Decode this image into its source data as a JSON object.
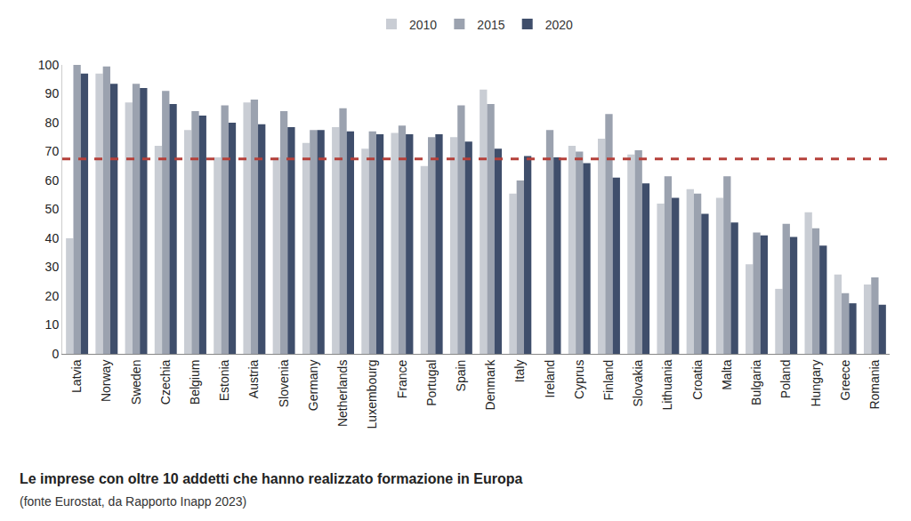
{
  "chart_data": {
    "type": "bar",
    "title": "Le imprese con oltre 10 addetti che hanno realizzato formazione in Europa",
    "subtitle": "(fonte Eurostat, da Rapporto Inapp 2023)",
    "categories": [
      "Latvia",
      "Norway",
      "Sweden",
      "Czechia",
      "Belgium",
      "Estonia",
      "Austria",
      "Slovenia",
      "Germany",
      "Netherlands",
      "Luxembourg",
      "France",
      "Portugal",
      "Spain",
      "Denmark",
      "Italy",
      "Ireland",
      "Cyprus",
      "Finland",
      "Slovakia",
      "Lithuania",
      "Croatia",
      "Malta",
      "Bulgaria",
      "Poland",
      "Hungary",
      "Greece",
      "Romania"
    ],
    "series": [
      {
        "name": "2010",
        "color": "#c9cdd4",
        "values": [
          40,
          97,
          87,
          72,
          77.5,
          68,
          87,
          68,
          73,
          78.5,
          71,
          76.5,
          65,
          75,
          91.5,
          55.5,
          null,
          72,
          74.5,
          69,
          52,
          57,
          54,
          31,
          22.5,
          49,
          27.5,
          24
        ]
      },
      {
        "name": "2015",
        "color": "#9ba2af",
        "values": [
          100,
          99.5,
          93.5,
          91,
          84,
          86,
          88,
          84,
          77.5,
          85,
          77,
          79,
          75,
          86,
          86.5,
          60,
          77.5,
          70,
          83,
          70.5,
          61.5,
          55.5,
          61.5,
          42,
          45,
          43.5,
          21,
          26.5
        ]
      },
      {
        "name": "2020",
        "color": "#3f4e6b",
        "values": [
          97,
          93.5,
          92,
          86.5,
          82.5,
          80,
          79.5,
          78.5,
          77.5,
          77,
          76,
          76,
          76,
          73.5,
          71,
          68.5,
          68,
          66,
          61,
          59,
          54,
          48.5,
          45.5,
          41,
          40.5,
          37.5,
          17.5,
          17
        ]
      }
    ],
    "reference_line": 67.5,
    "ylim": [
      0,
      100
    ],
    "yticks": [
      0,
      10,
      20,
      30,
      40,
      50,
      60,
      70,
      80,
      90,
      100
    ],
    "grid": false,
    "legend": "top"
  }
}
